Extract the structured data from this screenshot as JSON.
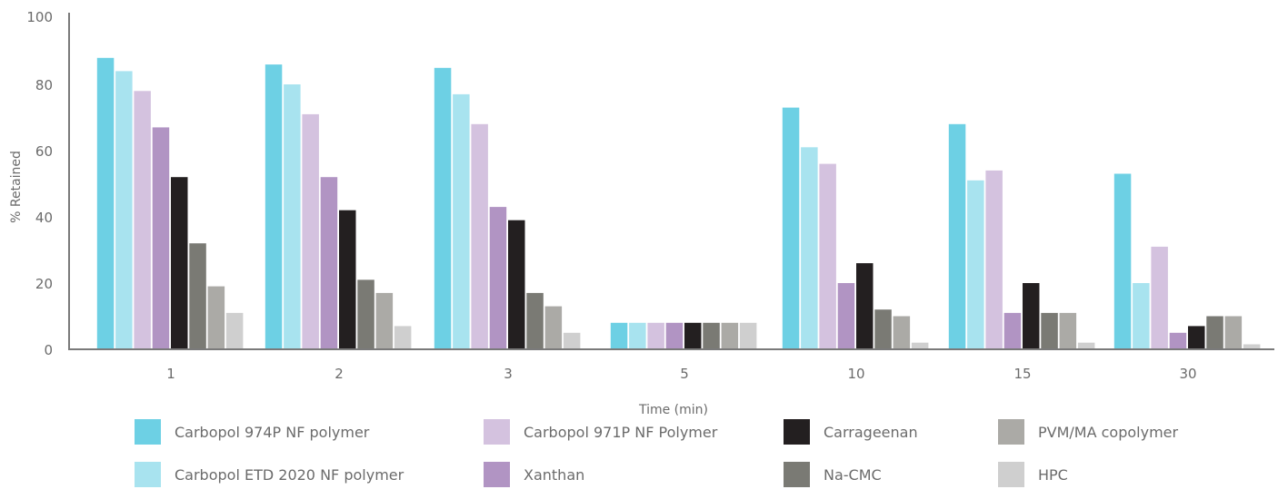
{
  "chart_data": {
    "type": "bar",
    "xlabel": "Time (min)",
    "ylabel": "% Retained",
    "ylim": [
      0,
      100
    ],
    "yticks": [
      "0",
      "20",
      "40",
      "60",
      "80",
      "100"
    ],
    "grid": false,
    "legend_position": "bottom",
    "categories": [
      "1",
      "2",
      "3",
      "5",
      "10",
      "15",
      "30"
    ],
    "series": [
      {
        "name": "Carbopol 974P NF polymer",
        "color": "#6dd0e4",
        "values": [
          88,
          86,
          85,
          8,
          73,
          68,
          53
        ]
      },
      {
        "name": "Carbopol ETD 2020 NF polymer",
        "color": "#a8e3ef",
        "values": [
          84,
          80,
          77,
          8,
          61,
          51,
          20
        ]
      },
      {
        "name": "Carbopol 971P NF Polymer",
        "color": "#d4c2df",
        "values": [
          78,
          71,
          68,
          8,
          56,
          54,
          31
        ]
      },
      {
        "name": "Xanthan",
        "color": "#b194c3",
        "values": [
          67,
          52,
          43,
          8,
          20,
          11,
          5
        ]
      },
      {
        "name": "Carrageenan",
        "color": "#231f20",
        "values": [
          52,
          42,
          39,
          8,
          26,
          20,
          7
        ]
      },
      {
        "name": "Na-CMC",
        "color": "#7a7a74",
        "values": [
          32,
          21,
          17,
          8,
          12,
          11,
          10
        ]
      },
      {
        "name": "PVM/MA copolymer",
        "color": "#abaaa6",
        "values": [
          19,
          17,
          13,
          8,
          10,
          11,
          10
        ]
      },
      {
        "name": "HPC",
        "color": "#cfcfcf",
        "values": [
          11,
          7,
          5,
          8,
          2,
          2,
          1.5
        ]
      }
    ],
    "legend_order": [
      0,
      2,
      4,
      6,
      1,
      3,
      5,
      7
    ]
  }
}
